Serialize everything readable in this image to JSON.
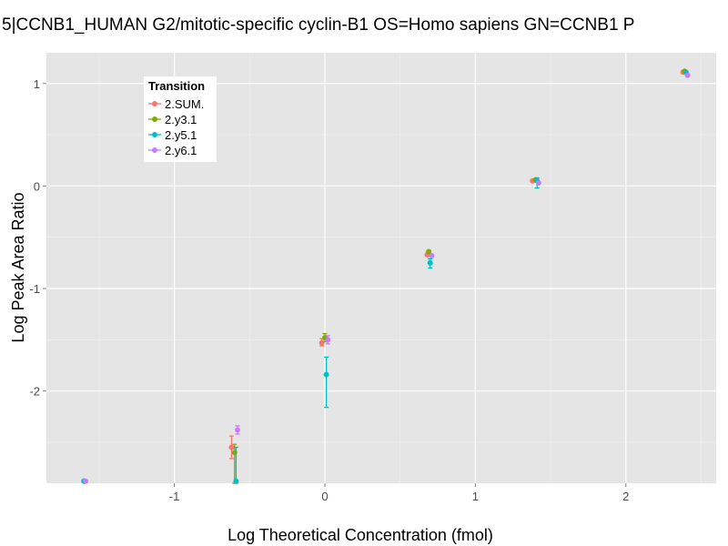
{
  "chart_data": {
    "type": "scatter",
    "title": "5|CCNB1_HUMAN G2/mitotic-specific cyclin-B1 OS=Homo sapiens GN=CCNB1 P",
    "xlabel": "Log Theoretical Concentration (fmol)",
    "ylabel": "Log Peak Area Ratio",
    "xlim": [
      -1.85,
      2.6
    ],
    "ylim": [
      -2.9,
      1.3
    ],
    "x_ticks": [
      -1,
      0,
      1,
      2
    ],
    "x_tick_labels": [
      "-1",
      "0",
      "1",
      "2"
    ],
    "y_ticks": [
      -2,
      -1,
      0,
      1
    ],
    "y_tick_labels": [
      "-2",
      "-1",
      "0",
      "1"
    ],
    "legend": {
      "title": "Transition",
      "position": "top-left"
    },
    "series": [
      {
        "name": "2.SUM.",
        "color": "#F8766D",
        "points": [
          {
            "x": -1.6,
            "y": -2.88
          },
          {
            "x": -0.62,
            "y": -2.55,
            "err_low": -2.66,
            "err_high": -2.44
          },
          {
            "x": -0.02,
            "y": -1.53,
            "err_low": -1.56,
            "err_high": -1.49
          },
          {
            "x": 0.68,
            "y": -0.67
          },
          {
            "x": 1.38,
            "y": 0.05
          },
          {
            "x": 2.38,
            "y": 1.11
          }
        ]
      },
      {
        "name": "2.y3.1",
        "color": "#7CAE00",
        "points": [
          {
            "x": -1.6,
            "y": -2.88
          },
          {
            "x": -0.6,
            "y": -2.6,
            "err_low": -2.9,
            "err_high": -2.52
          },
          {
            "x": 0.0,
            "y": -1.48,
            "err_low": -1.52,
            "err_high": -1.44
          },
          {
            "x": 0.69,
            "y": -0.64
          },
          {
            "x": 1.4,
            "y": 0.06
          },
          {
            "x": 2.39,
            "y": 1.12
          }
        ]
      },
      {
        "name": "2.y5.1",
        "color": "#00BFC4",
        "points": [
          {
            "x": -1.6,
            "y": -2.88
          },
          {
            "x": -0.59,
            "y": -2.88,
            "err_low": -2.9,
            "err_high": -2.55
          },
          {
            "x": 0.01,
            "y": -1.84,
            "err_low": -2.16,
            "err_high": -1.67
          },
          {
            "x": 0.7,
            "y": -0.75,
            "err_low": -0.8,
            "err_high": -0.71
          },
          {
            "x": 1.41,
            "y": 0.05,
            "err_low": -0.02,
            "err_high": 0.08
          },
          {
            "x": 2.4,
            "y": 1.11
          }
        ]
      },
      {
        "name": "2.y6.1",
        "color": "#C77CFF",
        "points": [
          {
            "x": -1.59,
            "y": -2.88
          },
          {
            "x": -0.58,
            "y": -2.38,
            "err_low": -2.42,
            "err_high": -2.34
          },
          {
            "x": 0.02,
            "y": -1.5,
            "err_low": -1.54,
            "err_high": -1.46
          },
          {
            "x": 0.71,
            "y": -0.68
          },
          {
            "x": 1.42,
            "y": 0.03
          },
          {
            "x": 2.41,
            "y": 1.08
          }
        ]
      }
    ]
  }
}
